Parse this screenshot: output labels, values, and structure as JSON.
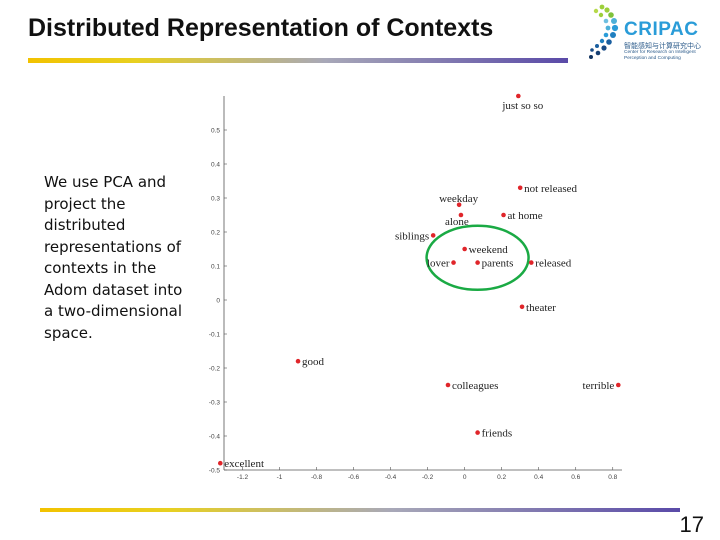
{
  "slide": {
    "title": "Distributed Representation of Contexts",
    "description": "We use PCA and project the distributed representations of contexts in the Adom dataset into a two-dimensional space.",
    "page_number": "17"
  },
  "logo": {
    "name": "CRIPAC",
    "chinese": "智能感知与计算研究中心",
    "subtitle": "Center for Research on Intelligent Perception and Computing"
  },
  "colors": {
    "point": "#e0252a",
    "highlight_ellipse": "#1aaa44",
    "rule_start": "#f2c200",
    "rule_end": "#5a4aa8"
  },
  "chart_data": {
    "type": "scatter",
    "title": "",
    "xlabel": "",
    "ylabel": "",
    "xlim": [
      -1.3,
      0.85
    ],
    "ylim": [
      -0.5,
      0.6
    ],
    "x_ticks": [
      "-1.2",
      "-1",
      "-0.8",
      "-0.6",
      "-0.4",
      "-0.2",
      "0",
      "0.2",
      "0.4",
      "0.6",
      "0.8"
    ],
    "y_ticks": [
      "-0.5",
      "-0.4",
      "-0.3",
      "-0.2",
      "-0.1",
      "0",
      "0.1",
      "0.2",
      "0.3",
      "0.4",
      "0.5"
    ],
    "grid": false,
    "points": [
      {
        "label": "just so so",
        "x": 0.29,
        "y": 0.6
      },
      {
        "label": "not released",
        "x": 0.3,
        "y": 0.33
      },
      {
        "label": "weekday",
        "x": -0.03,
        "y": 0.28
      },
      {
        "label": "alone",
        "x": -0.02,
        "y": 0.25
      },
      {
        "label": "at home",
        "x": 0.21,
        "y": 0.25
      },
      {
        "label": "siblings",
        "x": -0.17,
        "y": 0.19
      },
      {
        "label": "weekend",
        "x": 0.0,
        "y": 0.15
      },
      {
        "label": "lover",
        "x": -0.06,
        "y": 0.11
      },
      {
        "label": "parents",
        "x": 0.07,
        "y": 0.11
      },
      {
        "label": "released",
        "x": 0.36,
        "y": 0.11
      },
      {
        "label": "theater",
        "x": 0.31,
        "y": -0.02
      },
      {
        "label": "good",
        "x": -0.9,
        "y": -0.18
      },
      {
        "label": "colleagues",
        "x": -0.09,
        "y": -0.25
      },
      {
        "label": "terrible",
        "x": 0.83,
        "y": -0.25
      },
      {
        "label": "friends",
        "x": 0.07,
        "y": -0.39
      },
      {
        "label": "excellent",
        "x": -1.32,
        "y": -0.48
      }
    ],
    "highlight": {
      "shape": "ellipse",
      "members": [
        "weekend",
        "lover",
        "parents"
      ]
    }
  }
}
